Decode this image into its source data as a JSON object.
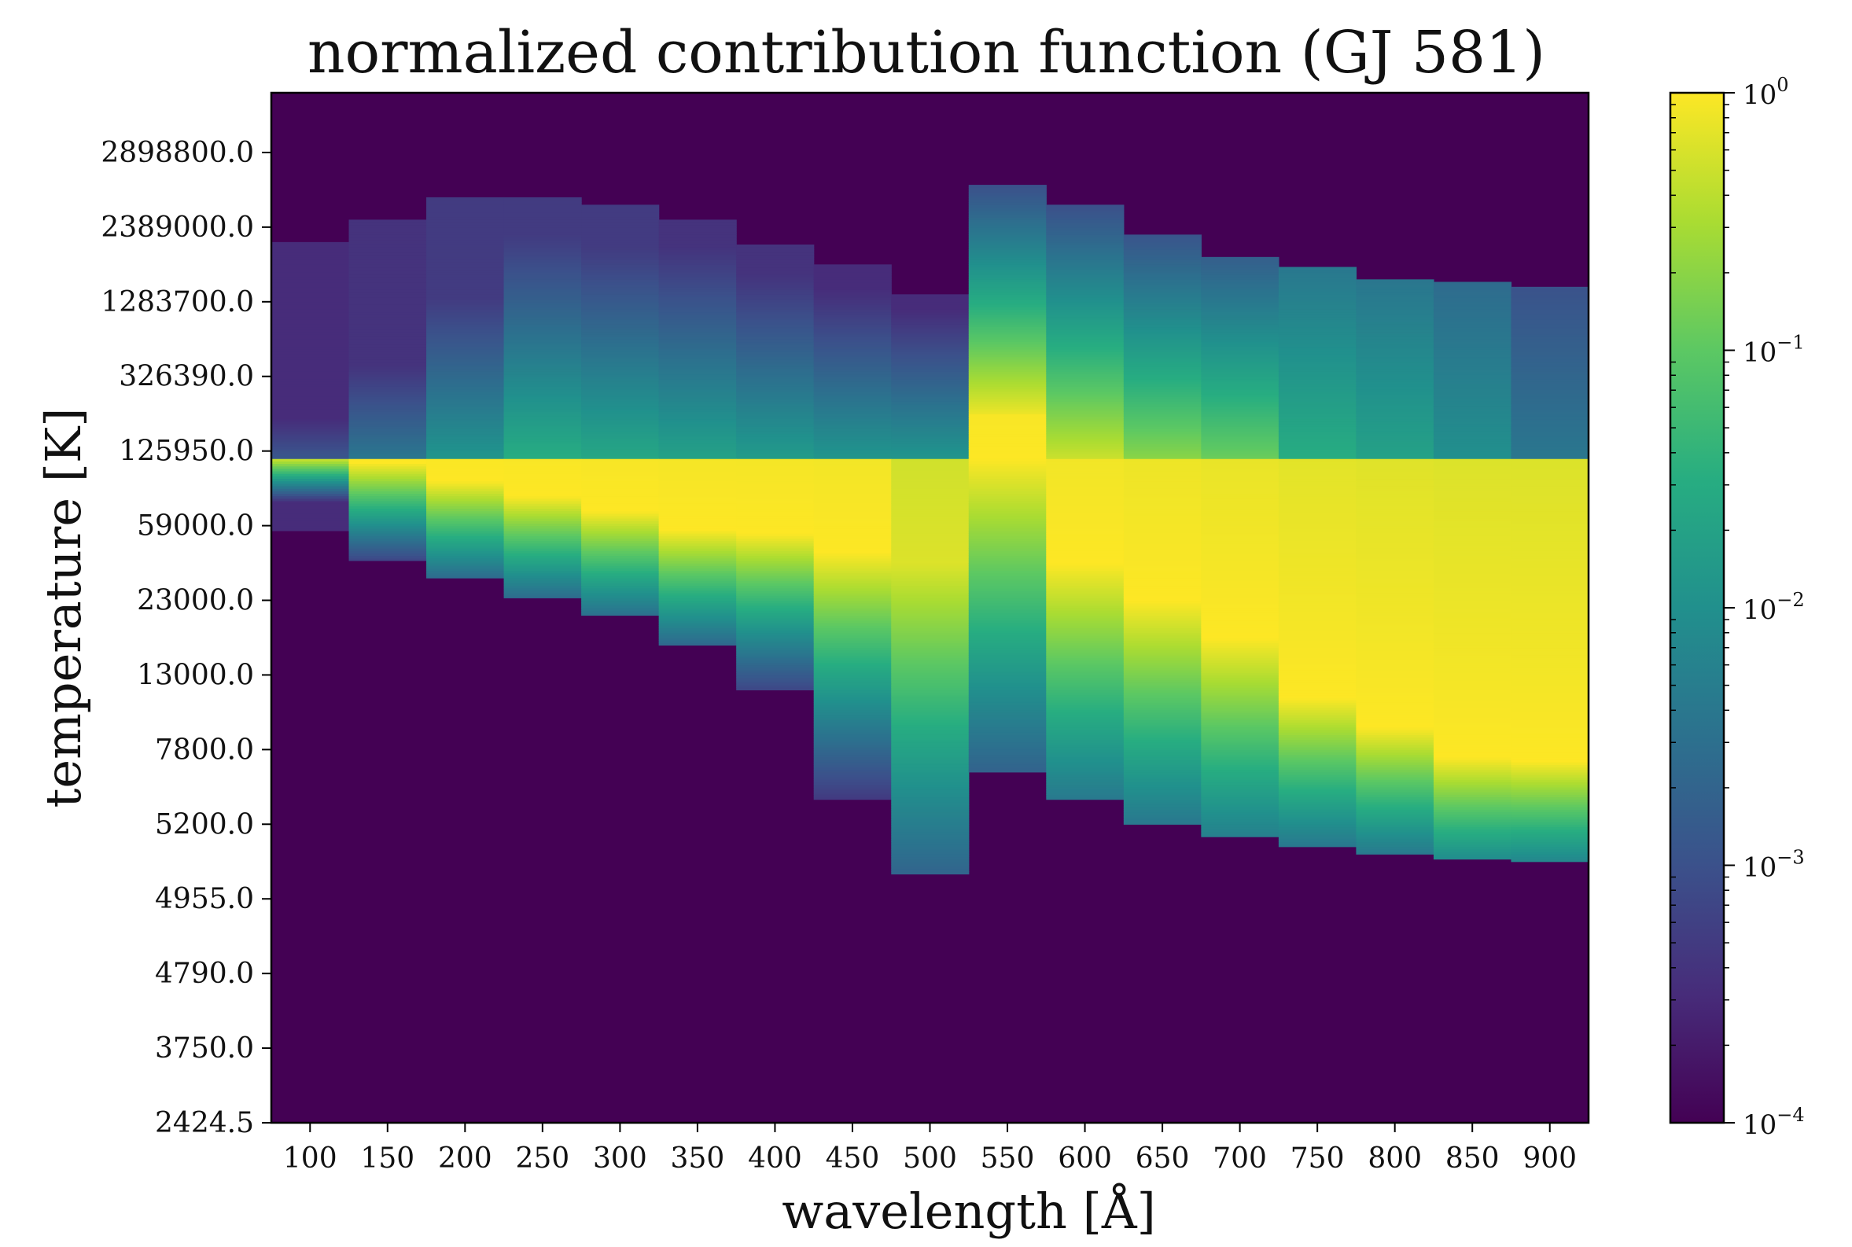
{
  "chart_data": {
    "type": "heatmap",
    "title": "normalized contribution function (GJ 581)",
    "xlabel": "wavelength [Å]",
    "ylabel": "temperature [K]",
    "x_ticks": [
      "100",
      "150",
      "200",
      "250",
      "300",
      "350",
      "400",
      "450",
      "500",
      "550",
      "600",
      "650",
      "700",
      "750",
      "800",
      "850",
      "900"
    ],
    "y_ticks": [
      "2424.5",
      "3750.0",
      "4790.0",
      "4955.0",
      "5200.0",
      "7800.0",
      "13000.0",
      "23000.0",
      "59000.0",
      "125950.0",
      "326390.0",
      "1283700.0",
      "2389000.0",
      "2898800.0"
    ],
    "colorbar": {
      "scale": "log",
      "range": [
        0.0001,
        1
      ],
      "colormap": "viridis",
      "tick_labels": [
        {
          "base": "10",
          "exp": "0",
          "value": 1
        },
        {
          "base": "10",
          "exp": "−1",
          "value": 0.1
        },
        {
          "base": "10",
          "exp": "−2",
          "value": 0.01
        },
        {
          "base": "10",
          "exp": "−3",
          "value": 0.001
        },
        {
          "base": "10",
          "exp": "−4",
          "value": 0.0001
        }
      ]
    },
    "grid": false,
    "temperature_index_range": [
      0,
      13.8
    ],
    "columns": [
      {
        "wavelength": 100,
        "region_min": 7.95,
        "region_max": 11.8,
        "peak": 8.95,
        "peak_log": 0,
        "break": 8.9,
        "up_log_at_break": -2.9,
        "up_slope": 1.1,
        "down_slope": 5.5,
        "floor_log": -3.5
      },
      {
        "wavelength": 150,
        "region_min": 7.55,
        "region_max": 12.1,
        "peak": 8.85,
        "peak_log": 0,
        "break": 8.9,
        "up_log_at_break": -2.4,
        "up_slope": 0.8,
        "down_slope": 2.4,
        "floor_log": -3.4
      },
      {
        "wavelength": 200,
        "region_min": 7.3,
        "region_max": 12.4,
        "peak": 8.6,
        "peak_log": 0,
        "break": 8.9,
        "up_log_at_break": -1.9,
        "up_slope": 0.65,
        "down_slope": 2.0,
        "floor_log": -3.3
      },
      {
        "wavelength": 250,
        "region_min": 7.05,
        "region_max": 12.4,
        "peak": 8.4,
        "peak_log": 0,
        "break": 8.9,
        "up_log_at_break": -1.5,
        "up_slope": 0.6,
        "down_slope": 1.9,
        "floor_log": -3.3
      },
      {
        "wavelength": 300,
        "region_min": 6.8,
        "region_max": 12.3,
        "peak": 8.2,
        "peak_log": 0,
        "break": 8.9,
        "up_log_at_break": -1.6,
        "up_slope": 0.6,
        "down_slope": 1.8,
        "floor_log": -3.3
      },
      {
        "wavelength": 350,
        "region_min": 6.4,
        "region_max": 12.1,
        "peak": 7.95,
        "peak_log": 0,
        "break": 8.9,
        "up_log_at_break": -1.7,
        "up_slope": 0.6,
        "down_slope": 1.7,
        "floor_log": -3.4
      },
      {
        "wavelength": 400,
        "region_min": 5.8,
        "region_max": 11.75,
        "peak": 7.9,
        "peak_log": 0,
        "break": 8.9,
        "up_log_at_break": -1.8,
        "up_slope": 0.65,
        "down_slope": 1.5,
        "floor_log": -3.4
      },
      {
        "wavelength": 450,
        "region_min": 4.35,
        "region_max": 11.5,
        "peak": 7.65,
        "peak_log": 0,
        "break": 8.9,
        "up_log_at_break": -1.9,
        "up_slope": 0.7,
        "down_slope": 1.0,
        "floor_log": -3.5
      },
      {
        "wavelength": 500,
        "region_min": 3.35,
        "region_max": 11.1,
        "peak": 7.5,
        "peak_log": -0.2,
        "break": 8.9,
        "up_log_at_break": -1.9,
        "up_slope": 0.8,
        "down_slope": 0.6,
        "floor_log": -3.5
      },
      {
        "wavelength": 550,
        "region_min": 4.7,
        "region_max": 12.55,
        "peak": 8.9,
        "peak_log": 0,
        "break": 9.5,
        "up_log_at_break": -0.1,
        "up_slope": 0.95,
        "down_slope": 0.65,
        "floor_log": -3.6
      },
      {
        "wavelength": 600,
        "region_min": 4.35,
        "region_max": 12.3,
        "peak": 7.5,
        "peak_log": 0,
        "break": 8.9,
        "up_log_at_break": -0.3,
        "up_slope": 0.8,
        "down_slope": 0.75,
        "floor_log": -3.5
      },
      {
        "wavelength": 650,
        "region_min": 4.0,
        "region_max": 11.9,
        "peak": 7.0,
        "peak_log": 0,
        "break": 8.9,
        "up_log_at_break": -0.7,
        "up_slope": 0.75,
        "down_slope": 0.8,
        "floor_log": -3.5
      },
      {
        "wavelength": 700,
        "region_min": 3.85,
        "region_max": 11.6,
        "peak": 6.5,
        "peak_log": 0,
        "break": 8.9,
        "up_log_at_break": -0.9,
        "up_slope": 0.7,
        "down_slope": 0.85,
        "floor_log": -3.5
      },
      {
        "wavelength": 750,
        "region_min": 3.7,
        "region_max": 11.45,
        "peak": 5.7,
        "peak_log": 0,
        "break": 8.9,
        "up_log_at_break": -1.5,
        "up_slope": 0.35,
        "down_slope": 1.2,
        "floor_log": -3.5
      },
      {
        "wavelength": 800,
        "region_min": 3.6,
        "region_max": 11.3,
        "peak": 5.3,
        "peak_log": 0,
        "break": 8.9,
        "up_log_at_break": -1.7,
        "up_slope": 0.3,
        "down_slope": 1.4,
        "floor_log": -3.6
      },
      {
        "wavelength": 850,
        "region_min": 3.55,
        "region_max": 11.25,
        "peak": 4.9,
        "peak_log": 0,
        "break": 8.9,
        "up_log_at_break": -2.0,
        "up_slope": 0.25,
        "down_slope": 1.5,
        "floor_log": -3.6
      },
      {
        "wavelength": 900,
        "region_min": 3.5,
        "region_max": 11.2,
        "peak": 4.85,
        "peak_log": 0,
        "break": 8.9,
        "up_log_at_break": -2.4,
        "up_slope": 0.25,
        "down_slope": 1.6,
        "floor_log": -3.6
      }
    ]
  }
}
